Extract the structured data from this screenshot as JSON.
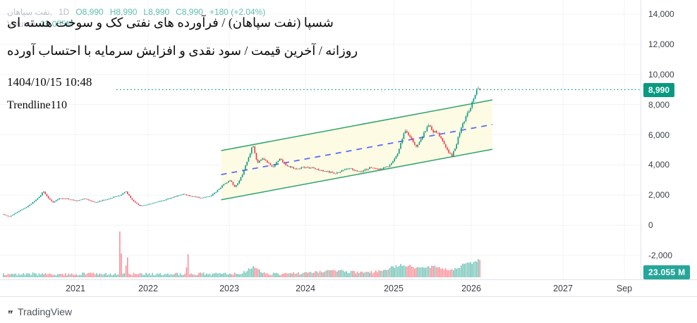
{
  "ticker": {
    "symbol_name": "نفت سپاهان,",
    "interval": "1D",
    "o": "O8,990",
    "h": "H8,990",
    "l": "L8,990",
    "c": "C8,990",
    "change": "+180 (+2.04%)",
    "volume_label": "Volume",
    "volume_value": "23.055M"
  },
  "annotations": {
    "line1": "شسپا (نفت سپاهان) / فرآورده های نفتی کک و سوخت هسته ای",
    "line2": "روزانه / آخرین قیمت / سود نقدی و افزایش سرمایه با احتساب آورده",
    "datetime": "1404/10/15 10:48",
    "trendline_label": "Trendline110"
  },
  "price_scale": {
    "last_price_label": "8,990"
  },
  "volume_scale": {
    "last_volume_label": "23.055 M"
  },
  "footer": {
    "brand": "TradingView"
  },
  "colors": {
    "up": "#089981",
    "down": "#F23645",
    "up_vol": "rgba(8,153,129,0.55)",
    "down_vol": "rgba(242,54,69,0.55)",
    "grid": "#F1F3F6",
    "channel_fill": "#FEFAE0",
    "channel_border": "#2DA46C",
    "channel_mid": "#5B6CF9",
    "price_line": "#089981"
  },
  "chart_data": {
    "type": "candlestick",
    "title": "شسپا نفت سپاهان — 1D",
    "legend": "O8,990 H8,990 L8,990 C8,990 +180 (+2.04%)",
    "x_ticks": [
      "2021",
      "2022",
      "2023",
      "2024",
      "2025",
      "2026",
      "2027",
      "Sep"
    ],
    "y_ticks": {
      "labels": [
        "14,000",
        "12,000",
        "10,000",
        "8,000",
        "6,000",
        "4,000",
        "2,000",
        "0",
        "-2,000"
      ],
      "values": [
        14000,
        12000,
        10000,
        8000,
        6000,
        4000,
        2000,
        0,
        -2000
      ]
    },
    "y_range": [
      -3000,
      14500
    ],
    "last_close": 8990,
    "change_abs": 180,
    "change_pct": 2.04,
    "current_price_line": 8990,
    "price_keypoints": [
      [
        2020.0,
        720
      ],
      [
        2020.08,
        560
      ],
      [
        2020.2,
        900
      ],
      [
        2020.35,
        1300
      ],
      [
        2020.5,
        1900
      ],
      [
        2020.55,
        2250
      ],
      [
        2020.62,
        1800
      ],
      [
        2020.68,
        1520
      ],
      [
        2020.78,
        1800
      ],
      [
        2020.88,
        1760
      ],
      [
        2021.0,
        1620
      ],
      [
        2021.12,
        1760
      ],
      [
        2021.26,
        1520
      ],
      [
        2021.4,
        1700
      ],
      [
        2021.52,
        1860
      ],
      [
        2021.61,
        2000
      ],
      [
        2021.68,
        2260
      ],
      [
        2021.78,
        1650
      ],
      [
        2021.88,
        1280
      ],
      [
        2022.02,
        1420
      ],
      [
        2022.16,
        1620
      ],
      [
        2022.32,
        1900
      ],
      [
        2022.42,
        2060
      ],
      [
        2022.52,
        1930
      ],
      [
        2022.64,
        1820
      ],
      [
        2022.76,
        1950
      ],
      [
        2022.84,
        2280
      ],
      [
        2022.92,
        2700
      ],
      [
        2023.0,
        3000
      ],
      [
        2023.07,
        2520
      ],
      [
        2023.16,
        3300
      ],
      [
        2023.24,
        4400
      ],
      [
        2023.3,
        5300
      ],
      [
        2023.36,
        4150
      ],
      [
        2023.42,
        4420
      ],
      [
        2023.5,
        4150
      ],
      [
        2023.56,
        3820
      ],
      [
        2023.66,
        4420
      ],
      [
        2023.74,
        3950
      ],
      [
        2023.88,
        3720
      ],
      [
        2024.0,
        3880
      ],
      [
        2024.18,
        3620
      ],
      [
        2024.34,
        3440
      ],
      [
        2024.48,
        3780
      ],
      [
        2024.62,
        3540
      ],
      [
        2024.72,
        3820
      ],
      [
        2024.84,
        3700
      ],
      [
        2024.94,
        3950
      ],
      [
        2025.04,
        4700
      ],
      [
        2025.14,
        6350
      ],
      [
        2025.22,
        5750
      ],
      [
        2025.29,
        5150
      ],
      [
        2025.37,
        5950
      ],
      [
        2025.44,
        6620
      ],
      [
        2025.5,
        6250
      ],
      [
        2025.56,
        6080
      ],
      [
        2025.63,
        5550
      ],
      [
        2025.69,
        4950
      ],
      [
        2025.74,
        4560
      ],
      [
        2025.8,
        5350
      ],
      [
        2025.86,
        6500
      ],
      [
        2025.93,
        7250
      ],
      [
        2025.99,
        7950
      ],
      [
        2026.03,
        8550
      ],
      [
        2026.06,
        9280
      ],
      [
        2026.08,
        8700
      ],
      [
        2026.1,
        8990
      ]
    ],
    "channel": {
      "label": "Trendline110",
      "t_start": 2022.9,
      "t_end": 2026.23,
      "top": [
        4950,
        8310
      ],
      "bottom": [
        1690,
        5040
      ],
      "mid": [
        3360,
        6680
      ]
    },
    "volume": {
      "latest_label": "23.055 M",
      "base_rel": 0.03,
      "spikes": [
        {
          "t": 2021.61,
          "rel": 1.0,
          "w": 0.012,
          "color": "down"
        },
        {
          "t": 2021.7,
          "rel": 0.42,
          "w": 0.012,
          "color": "down"
        },
        {
          "t": 2022.48,
          "rel": 0.36,
          "w": 0.012,
          "color": "down"
        },
        {
          "t": 2023.3,
          "rel": 0.1,
          "w": 0.1
        },
        {
          "t": 2024.3,
          "rel": 0.05,
          "w": 0.3
        },
        {
          "t": 2025.1,
          "rel": 0.13,
          "w": 0.25
        },
        {
          "t": 2025.55,
          "rel": 0.1,
          "w": 0.2
        },
        {
          "t": 2025.95,
          "rel": 0.16,
          "w": 0.15
        },
        {
          "t": 2026.08,
          "rel": 0.14,
          "w": 0.05
        }
      ]
    }
  }
}
